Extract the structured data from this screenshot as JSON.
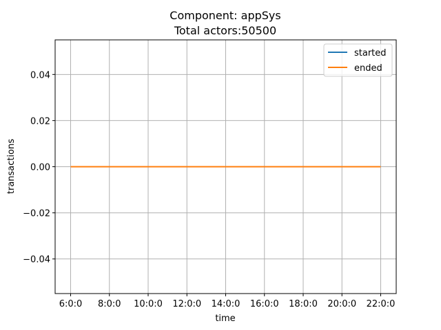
{
  "chart_data": {
    "type": "line",
    "title_lines": [
      "Component: appSys",
      "Total actors:50500"
    ],
    "xlabel": "time",
    "ylabel": "transactions",
    "categories": [
      "6:0:0",
      "8:0:0",
      "10:0:0",
      "12:0:0",
      "14:0:0",
      "16:0:0",
      "18:0:0",
      "20:0:0",
      "22:0:0"
    ],
    "x_range": [
      6,
      22
    ],
    "ylim": [
      -0.055,
      0.055
    ],
    "y_ticks": [
      -0.04,
      -0.02,
      0.0,
      0.02,
      0.04
    ],
    "y_tick_labels": [
      "−0.04",
      "−0.02",
      "0.00",
      "0.02",
      "0.04"
    ],
    "grid": true,
    "legend_position": "top-right",
    "series": [
      {
        "name": "started",
        "color": "#1f77b4",
        "x": [
          6,
          8,
          10,
          12,
          14,
          16,
          18,
          20,
          22
        ],
        "values": [
          0,
          0,
          0,
          0,
          0,
          0,
          0,
          0,
          0
        ]
      },
      {
        "name": "ended",
        "color": "#ff7f0e",
        "x": [
          6,
          8,
          10,
          12,
          14,
          16,
          18,
          20,
          22
        ],
        "values": [
          0,
          0,
          0,
          0,
          0,
          0,
          0,
          0,
          0
        ]
      }
    ],
    "colors": {
      "grid": "#b0b0b0",
      "axis": "#000000",
      "background": "#ffffff"
    }
  }
}
